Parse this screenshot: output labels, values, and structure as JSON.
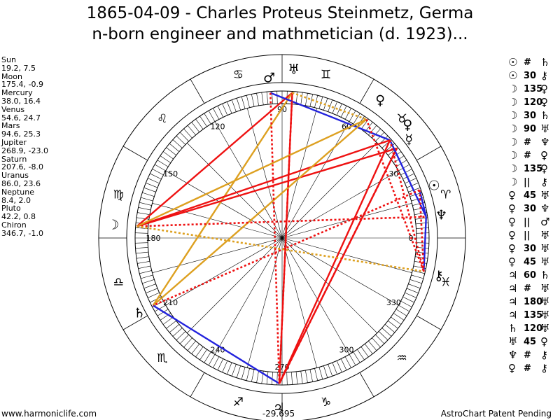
{
  "title": {
    "line1": "1865-04-09 - Charles Proteus Steinmetz, Germa",
    "line2": "n-born engineer and mathmetician (d. 1923)..."
  },
  "planets": [
    {
      "name": "Sun",
      "pos": "19.2, 7.5"
    },
    {
      "name": "Moon",
      "pos": "175.4, -0.9"
    },
    {
      "name": "Mercury",
      "pos": "38.0, 16.4"
    },
    {
      "name": "Venus",
      "pos": "54.6, 24.7"
    },
    {
      "name": "Mars",
      "pos": "94.6, 25.3"
    },
    {
      "name": "Jupiter",
      "pos": "268.9, -23.0"
    },
    {
      "name": "Saturn",
      "pos": "207.6, -8.0"
    },
    {
      "name": "Uranus",
      "pos": "86.0, 23.6"
    },
    {
      "name": "Neptune",
      "pos": "8.4, 2.0"
    },
    {
      "name": "Pluto",
      "pos": "42.2, 0.8"
    },
    {
      "name": "Chiron",
      "pos": "346.7, -1.0"
    }
  ],
  "aspects": [
    {
      "p1": "☉",
      "sym": "#",
      "p2": "♄"
    },
    {
      "p1": "☉",
      "sym": "30",
      "p2": "⚷"
    },
    {
      "p1": "☽",
      "sym": "135",
      "p2": "♀"
    },
    {
      "p1": "☽",
      "sym": "120",
      "p2": "♀"
    },
    {
      "p1": "☽",
      "sym": "30",
      "p2": "♄"
    },
    {
      "p1": "☽",
      "sym": "90",
      "p2": "♅"
    },
    {
      "p1": "☽",
      "sym": "#",
      "p2": "♆"
    },
    {
      "p1": "☽",
      "sym": "#",
      "p2": "♀"
    },
    {
      "p1": "☽",
      "sym": "135",
      "p2": "♀"
    },
    {
      "p1": "☽",
      "sym": "||",
      "p2": "⚷"
    },
    {
      "p1": "♀",
      "sym": "45",
      "p2": "♅"
    },
    {
      "p1": "♀",
      "sym": "30",
      "p2": "♆"
    },
    {
      "p1": "♀",
      "sym": "||",
      "p2": "♂"
    },
    {
      "p1": "♀",
      "sym": "||",
      "p2": "♅"
    },
    {
      "p1": "♀",
      "sym": "30",
      "p2": "♅"
    },
    {
      "p1": "♀",
      "sym": "45",
      "p2": "♅"
    },
    {
      "p1": "♃",
      "sym": "60",
      "p2": "♄"
    },
    {
      "p1": "♃",
      "sym": "#",
      "p2": "♅"
    },
    {
      "p1": "♃",
      "sym": "180",
      "p2": "♅"
    },
    {
      "p1": "♃",
      "sym": "135",
      "p2": "♅"
    },
    {
      "p1": "♄",
      "sym": "120",
      "p2": "♅"
    },
    {
      "p1": "♅",
      "sym": "45",
      "p2": "♀"
    },
    {
      "p1": "♆",
      "sym": "#",
      "p2": "⚷"
    },
    {
      "p1": "♀",
      "sym": "#",
      "p2": "⚷"
    }
  ],
  "wheel": {
    "degree_labels": [
      "0",
      "30",
      "60",
      "90",
      "120",
      "150",
      "180",
      "210",
      "240",
      "270",
      "300",
      "330"
    ],
    "bottom_label": "-29.695",
    "zodiac": [
      "♈",
      "♉",
      "♊",
      "♋",
      "♌",
      "♍",
      "♎",
      "♏",
      "♐",
      "♑",
      "♒",
      "♓"
    ],
    "bodies": [
      {
        "glyph": "☉",
        "lon": 19.2
      },
      {
        "glyph": "☽",
        "lon": 175.4
      },
      {
        "glyph": "☿",
        "lon": 38.0
      },
      {
        "glyph": "♀",
        "lon": 54.6
      },
      {
        "glyph": "♂",
        "lon": 94.6
      },
      {
        "glyph": "♃",
        "lon": 268.9
      },
      {
        "glyph": "♄",
        "lon": 207.6
      },
      {
        "glyph": "♅",
        "lon": 86.0
      },
      {
        "glyph": "♆",
        "lon": 8.4
      },
      {
        "glyph": "♀",
        "lon": 42.2
      },
      {
        "glyph": "⚷",
        "lon": 346.7
      }
    ],
    "lines": [
      {
        "a": 86.0,
        "b": 175.4,
        "color": "#ee1111",
        "style": "solid"
      },
      {
        "a": 86.0,
        "b": 268.9,
        "color": "#ee1111",
        "style": "solid"
      },
      {
        "a": 86.0,
        "b": 207.6,
        "color": "#dda020",
        "style": "solid"
      },
      {
        "a": 94.6,
        "b": 42.2,
        "color": "#2222dd",
        "style": "solid"
      },
      {
        "a": 42.2,
        "b": 175.4,
        "color": "#ee1111",
        "style": "solid"
      },
      {
        "a": 38.0,
        "b": 175.4,
        "color": "#ee1111",
        "style": "solid"
      },
      {
        "a": 54.6,
        "b": 175.4,
        "color": "#dda020",
        "style": "solid"
      },
      {
        "a": 54.6,
        "b": 207.6,
        "color": "#dda020",
        "style": "solid"
      },
      {
        "a": 38.0,
        "b": 268.9,
        "color": "#ee1111",
        "style": "solid"
      },
      {
        "a": 42.2,
        "b": 268.9,
        "color": "#ee1111",
        "style": "solid"
      },
      {
        "a": 42.2,
        "b": 8.4,
        "color": "#2222dd",
        "style": "solid"
      },
      {
        "a": 19.2,
        "b": 8.4,
        "color": "#2222dd",
        "style": "solid"
      },
      {
        "a": 8.4,
        "b": 346.7,
        "color": "#2222dd",
        "style": "solid"
      },
      {
        "a": 207.6,
        "b": 268.9,
        "color": "#2222dd",
        "style": "solid"
      },
      {
        "a": 86.0,
        "b": 268.9,
        "color": "#ee1111",
        "style": "dotted"
      },
      {
        "a": 19.2,
        "b": 207.6,
        "color": "#ee1111",
        "style": "dotted"
      },
      {
        "a": 42.2,
        "b": 346.7,
        "color": "#ee1111",
        "style": "dotted"
      },
      {
        "a": 175.4,
        "b": 8.4,
        "color": "#ee1111",
        "style": "dotted"
      },
      {
        "a": 175.4,
        "b": 346.7,
        "color": "#dda020",
        "style": "dotted"
      },
      {
        "a": 38.0,
        "b": 268.9,
        "color": "#ee1111",
        "style": "dotted"
      },
      {
        "a": 54.6,
        "b": 346.7,
        "color": "#ee1111",
        "style": "dotted"
      },
      {
        "a": 86.0,
        "b": 54.6,
        "color": "#dda020",
        "style": "dotted"
      },
      {
        "a": 94.6,
        "b": 268.9,
        "color": "#ee1111",
        "style": "dotted"
      },
      {
        "a": 19.2,
        "b": 346.7,
        "color": "#ee1111",
        "style": "dotted"
      }
    ]
  },
  "footer": {
    "left": "www.harmoniclife.com",
    "right": "AstroChart Patent Pending"
  }
}
